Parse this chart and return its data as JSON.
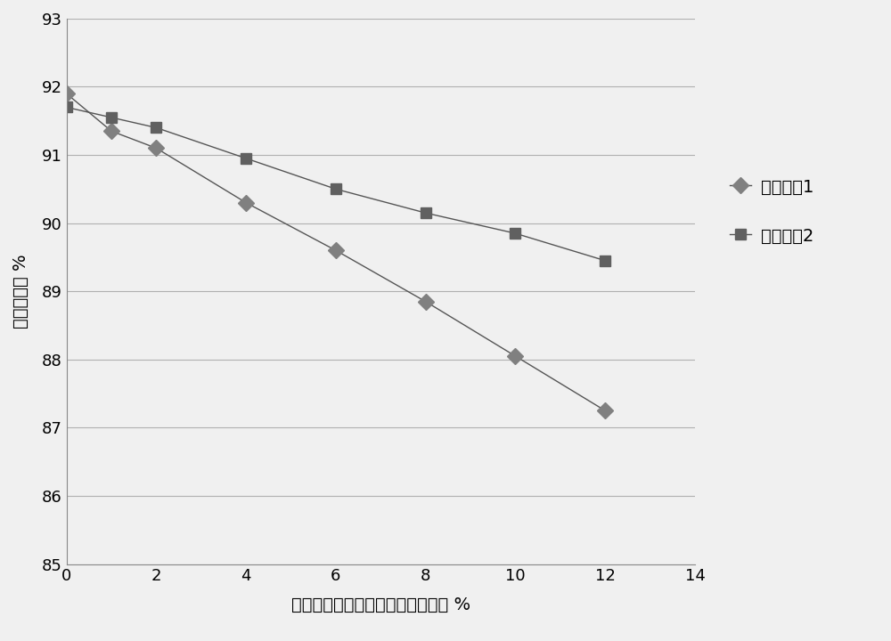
{
  "series1_label": "变温工况1",
  "series2_label": "变温工况2",
  "series1_x": [
    0,
    1,
    2,
    4,
    6,
    8,
    10,
    12
  ],
  "series1_y": [
    91.9,
    91.35,
    91.1,
    90.3,
    89.6,
    88.85,
    88.05,
    87.25
  ],
  "series2_x": [
    0,
    1,
    2,
    4,
    6,
    8,
    10,
    12
  ],
  "series2_y": [
    91.7,
    91.55,
    91.4,
    90.95,
    90.5,
    90.15,
    89.85,
    89.45
  ],
  "xlabel": "高中压轴封漏汽量占主汽流量比例 %",
  "ylabel": "中压缸效率 %",
  "xlim": [
    0,
    14
  ],
  "ylim": [
    85,
    93
  ],
  "yticks": [
    85,
    86,
    87,
    88,
    89,
    90,
    91,
    92,
    93
  ],
  "xticks": [
    0,
    2,
    4,
    6,
    8,
    10,
    12,
    14
  ],
  "line_color": "#555555",
  "marker1_color": "#808080",
  "marker2_color": "#606060",
  "background_color": "#f0f0f0",
  "plot_bg_color": "#f0f0f0",
  "grid_color": "#b0b0b0",
  "axis_label_fontsize": 14,
  "tick_fontsize": 13,
  "legend_fontsize": 14
}
